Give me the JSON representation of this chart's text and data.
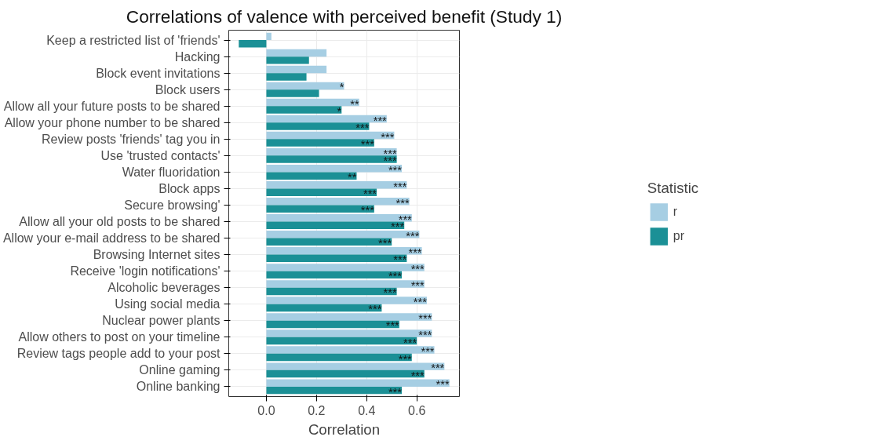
{
  "chart_data": {
    "type": "bar",
    "orientation": "horizontal",
    "title": "Correlations of valence with perceived benefit (Study 1)",
    "xlabel": "Correlation",
    "legend_title": "Statistic",
    "legend": "right",
    "grid": true,
    "categories": [
      "Keep a restricted list of 'friends'",
      "Hacking",
      "Block event invitations",
      "Block users",
      "Allow all your future posts to be shared",
      "Allow your phone number to be shared",
      "Review posts 'friends' tag you in",
      "Use 'trusted contacts'",
      "Water fluoridation",
      "Block apps",
      "Secure browsing'",
      "Allow all your old posts to be shared",
      "Allow your e-mail address to be shared",
      "Browsing Internet sites",
      "Receive 'login notifications'",
      "Alcoholic beverages",
      "Using social media",
      "Nuclear power plants",
      "Allow others to post on your timeline",
      "Review tags people add to your post",
      "Online gaming",
      "Online banking"
    ],
    "xlim": [
      -0.15,
      0.77
    ],
    "xticks": [
      {
        "value": 0,
        "label": "0.0"
      },
      0.2,
      0.4,
      0.6
    ],
    "series": [
      {
        "name": "r",
        "color": "#a6cee3",
        "values": [
          0.02,
          0.24,
          0.24,
          0.31,
          0.37,
          0.48,
          0.51,
          0.52,
          0.54,
          0.56,
          0.57,
          0.58,
          0.61,
          0.62,
          0.63,
          0.63,
          0.64,
          0.66,
          0.66,
          0.67,
          0.71,
          0.73
        ],
        "value_labels": [
          null,
          null,
          null,
          "*",
          "**",
          "***",
          "***",
          "***",
          "***",
          "***",
          "***",
          "***",
          "***",
          "***",
          "***",
          "***",
          "***",
          "***",
          "***",
          "***",
          "***",
          "***"
        ]
      },
      {
        "name": "pr",
        "color": "#1b9096",
        "values": [
          -0.11,
          0.17,
          0.16,
          0.21,
          0.3,
          0.41,
          0.43,
          0.52,
          0.36,
          0.44,
          0.43,
          0.55,
          0.5,
          0.56,
          0.54,
          0.52,
          0.46,
          0.53,
          0.6,
          0.58,
          0.63,
          0.54
        ],
        "value_labels": [
          null,
          null,
          null,
          null,
          "*",
          "***",
          "***",
          "***",
          "**",
          "***",
          "***",
          "***",
          "***",
          "***",
          "***",
          "***",
          "***",
          "***",
          "***",
          "***",
          "***",
          "***"
        ]
      }
    ]
  }
}
